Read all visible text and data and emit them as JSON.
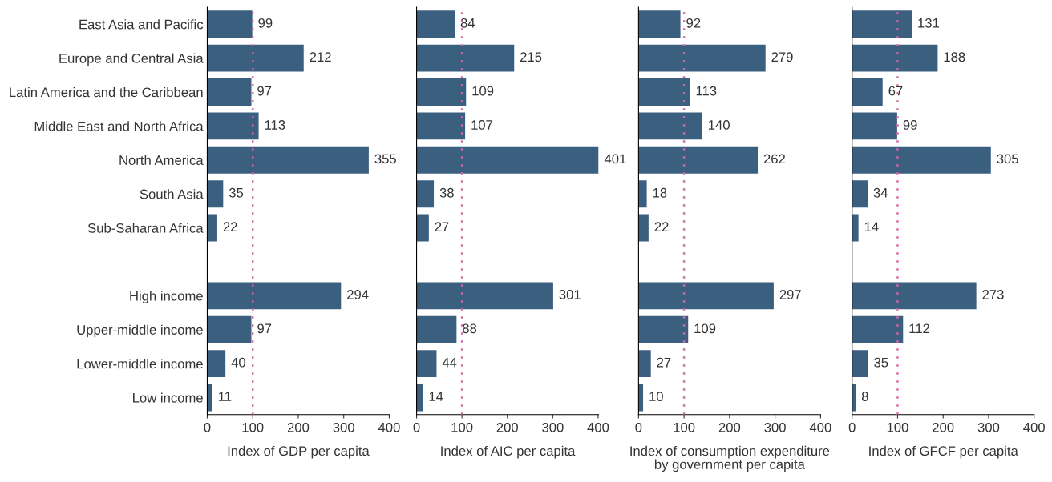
{
  "chart_data": [
    {
      "type": "bar",
      "orientation": "horizontal",
      "xlabel": "Index of GDP per capita",
      "categories": [
        "East Asia and Pacific",
        "Europe and Central Asia",
        "Latin America and the Caribbean",
        "Middle East and North Africa",
        "North America",
        "South Asia",
        "Sub-Saharan Africa",
        null,
        "High income",
        "Upper-middle income",
        "Lower-middle income",
        "Low income"
      ],
      "values": [
        99,
        212,
        97,
        113,
        355,
        35,
        22,
        null,
        294,
        97,
        40,
        11
      ],
      "color": "#3b5f7f",
      "xlim": [
        0,
        400
      ],
      "xticks": [
        0,
        100,
        200,
        300,
        400
      ],
      "data_labels": true,
      "grid": false,
      "ref_lines": [
        {
          "axis": "x",
          "value": 100,
          "color": "#d36aa8",
          "line_style": "dotted"
        }
      ]
    },
    {
      "type": "bar",
      "orientation": "horizontal",
      "xlabel": "Index of AIC per capita",
      "categories": [
        null,
        null,
        null,
        null,
        null,
        null,
        null,
        null,
        null,
        null,
        null,
        null
      ],
      "values": [
        84,
        215,
        109,
        107,
        401,
        38,
        27,
        null,
        301,
        88,
        44,
        14
      ],
      "color": "#3b5f7f",
      "xlim": [
        0,
        401
      ],
      "xticks": [
        0,
        100,
        200,
        300,
        400
      ],
      "data_labels": true,
      "grid": false,
      "tick_labels": "x",
      "ref_lines": [
        {
          "axis": "x",
          "value": 100,
          "color": "#d36aa8",
          "line_style": "dotted"
        }
      ]
    },
    {
      "type": "bar",
      "orientation": "horizontal",
      "xlabel": "Index of consumption expenditure\nby government per capita",
      "categories": [
        null,
        null,
        null,
        null,
        null,
        null,
        null,
        null,
        null,
        null,
        null,
        null
      ],
      "values": [
        92,
        279,
        113,
        140,
        262,
        18,
        22,
        null,
        297,
        109,
        27,
        10
      ],
      "color": "#3b5f7f",
      "xlim": [
        0,
        400
      ],
      "xticks": [
        0,
        100,
        200,
        300,
        400
      ],
      "data_labels": true,
      "grid": false,
      "tick_labels": "x",
      "ref_lines": [
        {
          "axis": "x",
          "value": 100,
          "color": "#d36aa8",
          "line_style": "dotted"
        }
      ]
    },
    {
      "type": "bar",
      "orientation": "horizontal",
      "xlabel": "Index of GFCF per capita",
      "categories": [
        null,
        null,
        null,
        null,
        null,
        null,
        null,
        null,
        null,
        null,
        null,
        null
      ],
      "values": [
        131,
        188,
        67,
        99,
        305,
        34,
        14,
        null,
        273,
        112,
        35,
        8
      ],
      "color": "#3b5f7f",
      "xlim": [
        0,
        400
      ],
      "xticks": [
        0,
        100,
        200,
        300,
        400
      ],
      "data_labels": true,
      "grid": false,
      "tick_labels": "x",
      "ref_lines": [
        {
          "axis": "x",
          "value": 100,
          "color": "#d36aa8",
          "line_style": "dotted"
        }
      ]
    }
  ]
}
